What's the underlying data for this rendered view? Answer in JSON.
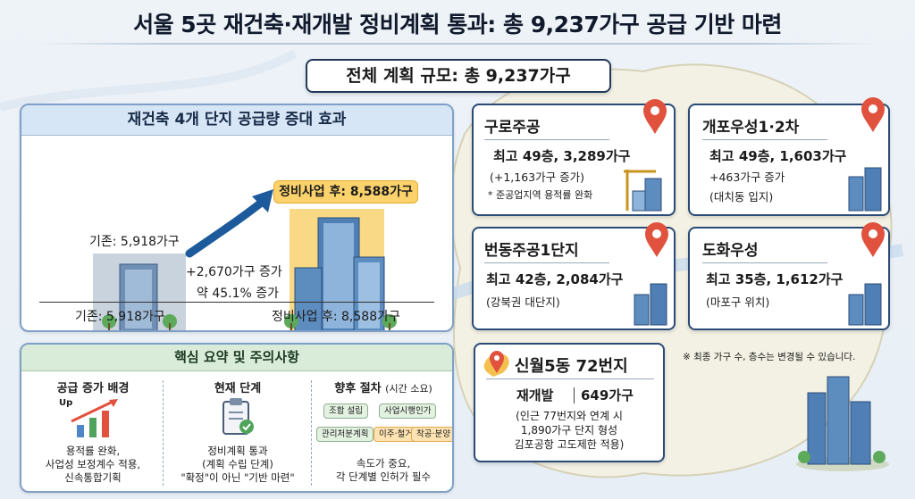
{
  "header": {
    "title": "서울 5곳 재건축·재개발 정비계획 통과: 총 9,237가구 공급 기반 마련",
    "scale": "전체 계획 규모: 총 9,237가구"
  },
  "effect": {
    "heading": "재건축 4개 단지 공급량 증대 효과",
    "before_label": "기존: 5,918가구",
    "after_badge": "정비사업 후: 8,588가구",
    "increase_units": "+2,670가구 증가",
    "increase_pct": "약 45.1% 증가",
    "before_value": 5918,
    "after_value": 8588,
    "bottom_before": "기존: 5,918가구",
    "bottom_after": "정비사업 후: 8,588가구"
  },
  "summary": {
    "heading": "핵심 요약 및 주의사항",
    "col1": {
      "title": "공급 증가 배경",
      "up_label": "Up",
      "lines": [
        "용적률 완화,",
        "사업성 보정계수 적용,",
        "신속통합기획"
      ]
    },
    "col2": {
      "title": "현재 단계",
      "lines": [
        "정비계획 통과",
        "(계획 수립 단계)",
        "\"확정\"이 아닌 \"기반 마련\""
      ]
    },
    "col3": {
      "title": "향후 절차",
      "title_sub": "(시간 소요)",
      "steps": [
        "조합 설립",
        "사업시행인가",
        "관리처분계획",
        "이주·철거",
        "착공·분양"
      ],
      "lines": [
        "속도가 중요,",
        "각 단계별 인허가 필수"
      ]
    }
  },
  "projects": [
    {
      "name": "구로주공",
      "main": "최고 49층, 3,289가구",
      "sub": "(+1,163가구 증가)",
      "note": "* 준공업지역 용적률 완화"
    },
    {
      "name": "개포우성1·2차",
      "main": "최고 49층, 1,603가구",
      "sub": "+463가구 증가",
      "note": "(대치동 입지)"
    },
    {
      "name": "번동주공1단지",
      "main": "최고 42층, 2,084가구",
      "sub": "(강북권 대단지)"
    },
    {
      "name": "도화우성",
      "main": "최고 35층, 1,612가구",
      "sub": "(마포구 위치)"
    },
    {
      "name": "신월5동 72번지",
      "main_a": "재개발",
      "main_b": "649가구",
      "lines": [
        "(인근 77번지와 연계 시",
        "1,890가구 단지 형성",
        "김포공항 고도제한 적용)"
      ]
    }
  ],
  "footnote": "※ 최종 가구 수, 층수는 변경될 수 있습니다.",
  "colors": {
    "navy": "#23395a",
    "blue_panel": "#d6e6f6",
    "green_panel": "#d8ecd9",
    "badge": "#fbd26b",
    "pin": "#e0523e"
  }
}
